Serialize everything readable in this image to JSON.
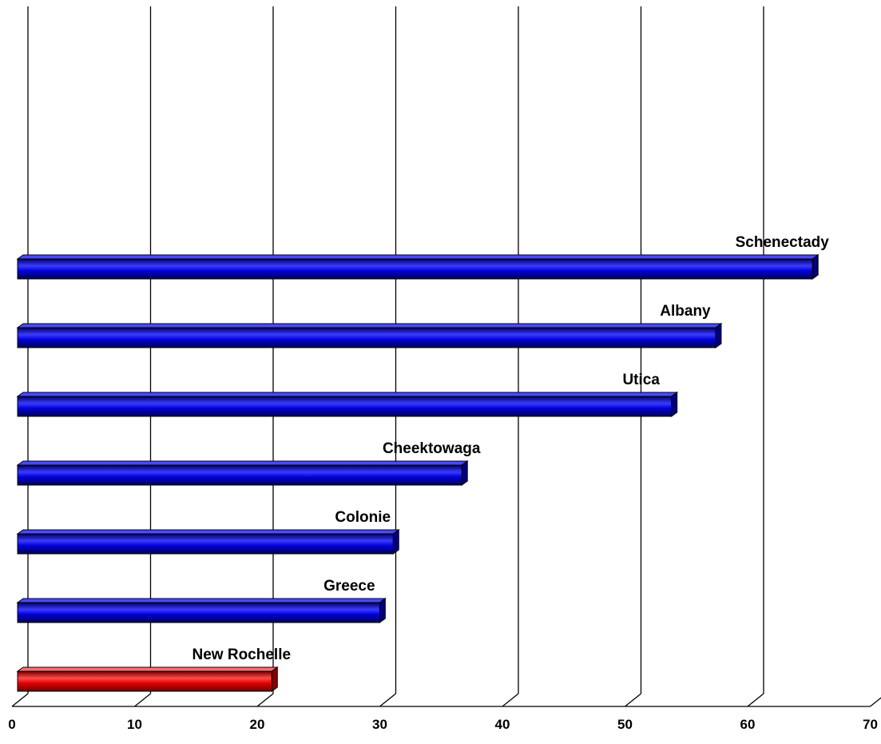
{
  "chart_data": {
    "type": "bar",
    "orientation": "horizontal",
    "style": "3d",
    "categories": [
      "Schenectady",
      "Albany",
      "Utica",
      "Cheektowaga",
      "Colonie",
      "Greece",
      "New Rochelle"
    ],
    "values": [
      64.9,
      57.0,
      53.4,
      36.3,
      30.7,
      29.6,
      20.8
    ],
    "bar_colors": [
      "#0000cc",
      "#0000cc",
      "#0000cc",
      "#0000cc",
      "#0000cc",
      "#0000cc",
      "#e00000"
    ],
    "xlim": [
      0,
      70
    ],
    "x_ticks": [
      "0",
      "10",
      "20",
      "30",
      "40",
      "50",
      "60",
      "70"
    ],
    "grid": true,
    "legend": "none",
    "title": "",
    "xlabel": "",
    "ylabel": ""
  }
}
